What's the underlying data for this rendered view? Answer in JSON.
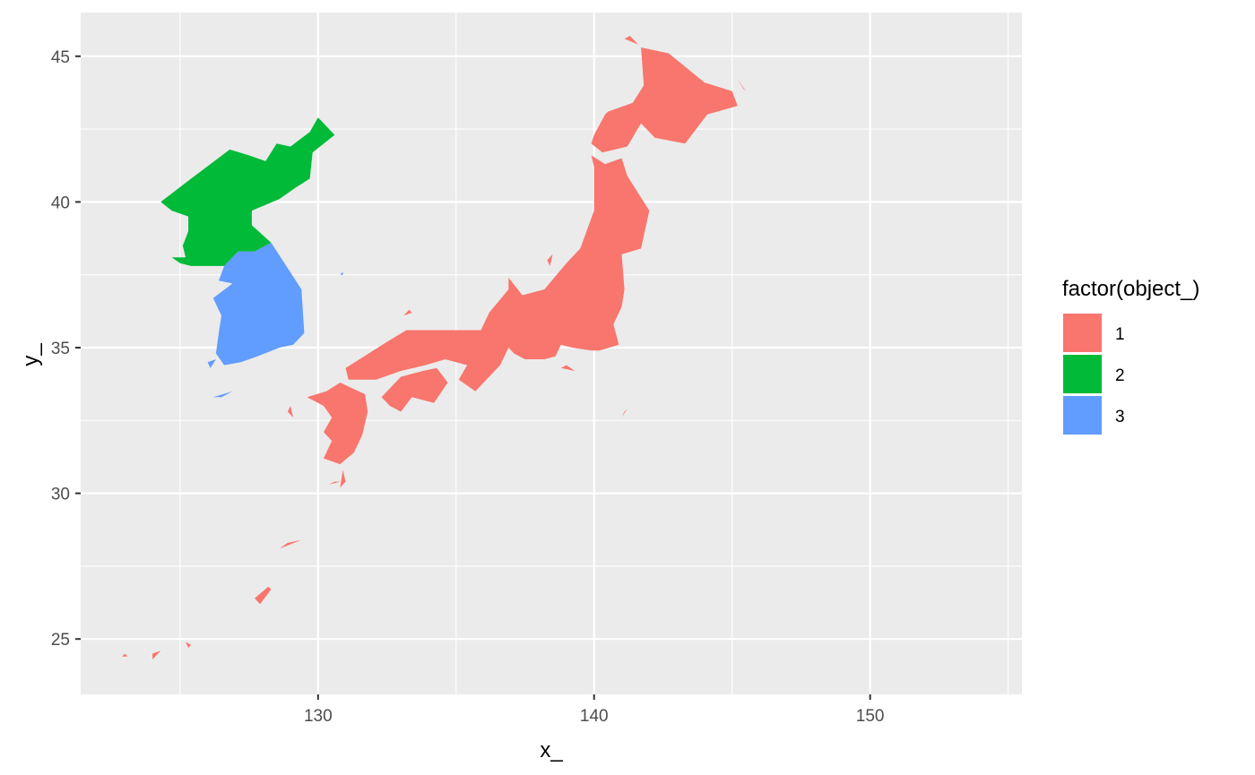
{
  "chart_data": {
    "type": "map",
    "xlabel": "x_",
    "ylabel": "y_",
    "xlim": [
      121.4,
      155.5
    ],
    "ylim": [
      23.1,
      46.5
    ],
    "x_ticks": [
      130,
      140,
      150
    ],
    "y_ticks": [
      25,
      30,
      35,
      40,
      45
    ],
    "x_minor": [
      125,
      135,
      145,
      155
    ],
    "y_minor": [
      27.5,
      32.5,
      37.5,
      42.5
    ],
    "grid": true,
    "legend": {
      "title": "factor(object_)",
      "position": "right",
      "entries": [
        {
          "label": "1",
          "color": "#F8766D"
        },
        {
          "label": "2",
          "color": "#00BA38"
        },
        {
          "label": "3",
          "color": "#619CFF"
        }
      ]
    },
    "series": [
      {
        "object": "1",
        "color": "#F8766D",
        "polygons": [
          [
            [
              139.9,
              41.6
            ],
            [
              140.4,
              41.3
            ],
            [
              141.0,
              41.5
            ],
            [
              141.2,
              40.9
            ],
            [
              142.0,
              39.7
            ],
            [
              141.7,
              38.4
            ],
            [
              141.0,
              38.2
            ],
            [
              141.1,
              37.0
            ],
            [
              141.0,
              36.4
            ],
            [
              140.7,
              35.8
            ],
            [
              140.9,
              35.1
            ],
            [
              140.2,
              34.9
            ],
            [
              139.9,
              34.9
            ],
            [
              139.2,
              35.0
            ],
            [
              138.8,
              35.1
            ],
            [
              138.6,
              34.7
            ],
            [
              138.2,
              34.6
            ],
            [
              137.5,
              34.6
            ],
            [
              137.1,
              34.8
            ],
            [
              136.9,
              35.0
            ],
            [
              136.6,
              34.4
            ],
            [
              136.2,
              34.0
            ],
            [
              135.7,
              33.5
            ],
            [
              135.1,
              33.9
            ],
            [
              135.4,
              34.4
            ],
            [
              134.6,
              34.6
            ],
            [
              133.9,
              34.4
            ],
            [
              133.0,
              34.2
            ],
            [
              132.1,
              33.9
            ],
            [
              131.1,
              33.9
            ],
            [
              131.0,
              34.3
            ],
            [
              131.5,
              34.6
            ],
            [
              132.5,
              35.2
            ],
            [
              133.2,
              35.6
            ],
            [
              134.6,
              35.6
            ],
            [
              135.9,
              35.6
            ],
            [
              136.2,
              36.2
            ],
            [
              136.9,
              37.0
            ],
            [
              136.9,
              37.4
            ],
            [
              137.4,
              36.8
            ],
            [
              138.2,
              37.0
            ],
            [
              139.0,
              37.9
            ],
            [
              139.5,
              38.4
            ],
            [
              140.0,
              39.7
            ],
            [
              140.0,
              40.4
            ],
            [
              140.0,
              41.2
            ]
          ],
          [
            [
              140.0,
              42.3
            ],
            [
              139.9,
              42.0
            ],
            [
              140.3,
              41.7
            ],
            [
              141.2,
              41.9
            ],
            [
              141.7,
              42.7
            ],
            [
              142.2,
              42.2
            ],
            [
              143.3,
              42.0
            ],
            [
              144.1,
              43.0
            ],
            [
              145.2,
              43.3
            ],
            [
              145.0,
              43.8
            ],
            [
              144.0,
              44.1
            ],
            [
              142.7,
              45.1
            ],
            [
              141.7,
              45.3
            ],
            [
              141.8,
              44.0
            ],
            [
              141.4,
              43.4
            ],
            [
              140.5,
              43.1
            ],
            [
              140.4,
              43.0
            ]
          ],
          [
            [
              133.0,
              34.0
            ],
            [
              132.3,
              33.3
            ],
            [
              132.6,
              33.0
            ],
            [
              133.0,
              32.8
            ],
            [
              133.4,
              33.3
            ],
            [
              134.2,
              33.1
            ],
            [
              134.7,
              33.8
            ],
            [
              134.3,
              34.3
            ],
            [
              133.8,
              34.2
            ]
          ],
          [
            [
              130.3,
              33.5
            ],
            [
              130.8,
              33.8
            ],
            [
              131.7,
              33.4
            ],
            [
              131.8,
              32.8
            ],
            [
              131.6,
              32.0
            ],
            [
              131.3,
              31.4
            ],
            [
              130.8,
              31.0
            ],
            [
              130.2,
              31.2
            ],
            [
              130.5,
              31.8
            ],
            [
              130.2,
              32.1
            ],
            [
              130.5,
              32.6
            ],
            [
              130.2,
              33.0
            ],
            [
              129.6,
              33.3
            ]
          ],
          [
            [
              130.4,
              30.3
            ],
            [
              130.6,
              30.4
            ],
            [
              130.8,
              30.4
            ]
          ],
          [
            [
              130.9,
              30.8
            ],
            [
              131.0,
              30.4
            ],
            [
              130.8,
              30.2
            ]
          ],
          [
            [
              127.9,
              26.2
            ],
            [
              128.3,
              26.7
            ],
            [
              128.2,
              26.8
            ],
            [
              127.7,
              26.4
            ]
          ],
          [
            [
              128.9,
              28.3
            ],
            [
              129.4,
              28.4
            ],
            [
              128.6,
              28.1
            ]
          ],
          [
            [
              124.0,
              24.3
            ],
            [
              124.3,
              24.6
            ],
            [
              124.0,
              24.5
            ]
          ],
          [
            [
              125.2,
              24.9
            ],
            [
              125.4,
              24.8
            ],
            [
              125.3,
              24.7
            ]
          ],
          [
            [
              122.9,
              24.4
            ],
            [
              123.0,
              24.5
            ],
            [
              123.1,
              24.4
            ]
          ],
          [
            [
              138.3,
              38.0
            ],
            [
              138.5,
              38.2
            ],
            [
              138.4,
              37.8
            ]
          ],
          [
            [
              133.1,
              36.1
            ],
            [
              133.3,
              36.3
            ],
            [
              133.4,
              36.2
            ]
          ],
          [
            [
              138.8,
              34.3
            ],
            [
              139.3,
              34.2
            ],
            [
              139.0,
              34.4
            ]
          ],
          [
            [
              141.6,
              45.4
            ],
            [
              141.1,
              45.6
            ],
            [
              141.3,
              45.7
            ]
          ],
          [
            [
              145.5,
              43.8
            ],
            [
              145.2,
              44.2
            ],
            [
              145.4,
              43.9
            ]
          ],
          [
            [
              141.1,
              32.8
            ],
            [
              141.2,
              32.9
            ],
            [
              141.0,
              32.6
            ]
          ],
          [
            [
              128.9,
              32.8
            ],
            [
              129.1,
              32.6
            ],
            [
              129.0,
              33.0
            ]
          ]
        ]
      },
      {
        "object": "2",
        "color": "#00BA38",
        "polygons": [
          [
            [
              124.3,
              40.0
            ],
            [
              125.4,
              40.8
            ],
            [
              126.8,
              41.8
            ],
            [
              127.5,
              41.6
            ],
            [
              128.1,
              41.4
            ],
            [
              128.5,
              42.0
            ],
            [
              129.0,
              41.9
            ],
            [
              129.7,
              42.4
            ],
            [
              130.0,
              42.9
            ],
            [
              130.6,
              42.3
            ],
            [
              129.8,
              41.7
            ],
            [
              129.7,
              40.8
            ],
            [
              129.2,
              40.5
            ],
            [
              128.6,
              40.1
            ],
            [
              127.6,
              39.7
            ],
            [
              127.6,
              39.2
            ],
            [
              128.3,
              38.6
            ],
            [
              127.7,
              38.3
            ],
            [
              127.1,
              38.3
            ],
            [
              126.6,
              37.8
            ],
            [
              126.1,
              37.8
            ],
            [
              125.4,
              37.8
            ],
            [
              125.0,
              37.9
            ],
            [
              124.7,
              38.1
            ],
            [
              125.2,
              38.1
            ],
            [
              125.1,
              38.5
            ],
            [
              125.3,
              39.0
            ],
            [
              125.3,
              39.5
            ],
            [
              124.7,
              39.7
            ]
          ]
        ]
      },
      {
        "object": "3",
        "color": "#619CFF",
        "polygons": [
          [
            [
              128.3,
              38.6
            ],
            [
              129.4,
              37.0
            ],
            [
              129.5,
              35.5
            ],
            [
              129.1,
              35.1
            ],
            [
              128.6,
              35.0
            ],
            [
              127.8,
              34.7
            ],
            [
              127.2,
              34.5
            ],
            [
              126.6,
              34.4
            ],
            [
              126.3,
              34.8
            ],
            [
              126.4,
              35.5
            ],
            [
              126.5,
              36.1
            ],
            [
              126.2,
              36.7
            ],
            [
              126.9,
              37.2
            ],
            [
              126.4,
              37.3
            ],
            [
              126.6,
              37.8
            ],
            [
              127.1,
              38.3
            ],
            [
              127.7,
              38.3
            ]
          ],
          [
            [
              126.2,
              33.3
            ],
            [
              126.9,
              33.5
            ],
            [
              126.5,
              33.3
            ]
          ],
          [
            [
              126.1,
              34.3
            ],
            [
              126.3,
              34.6
            ],
            [
              126.0,
              34.5
            ]
          ],
          [
            [
              130.9,
              37.5
            ],
            [
              130.9,
              37.6
            ],
            [
              130.8,
              37.5
            ]
          ]
        ]
      }
    ]
  }
}
